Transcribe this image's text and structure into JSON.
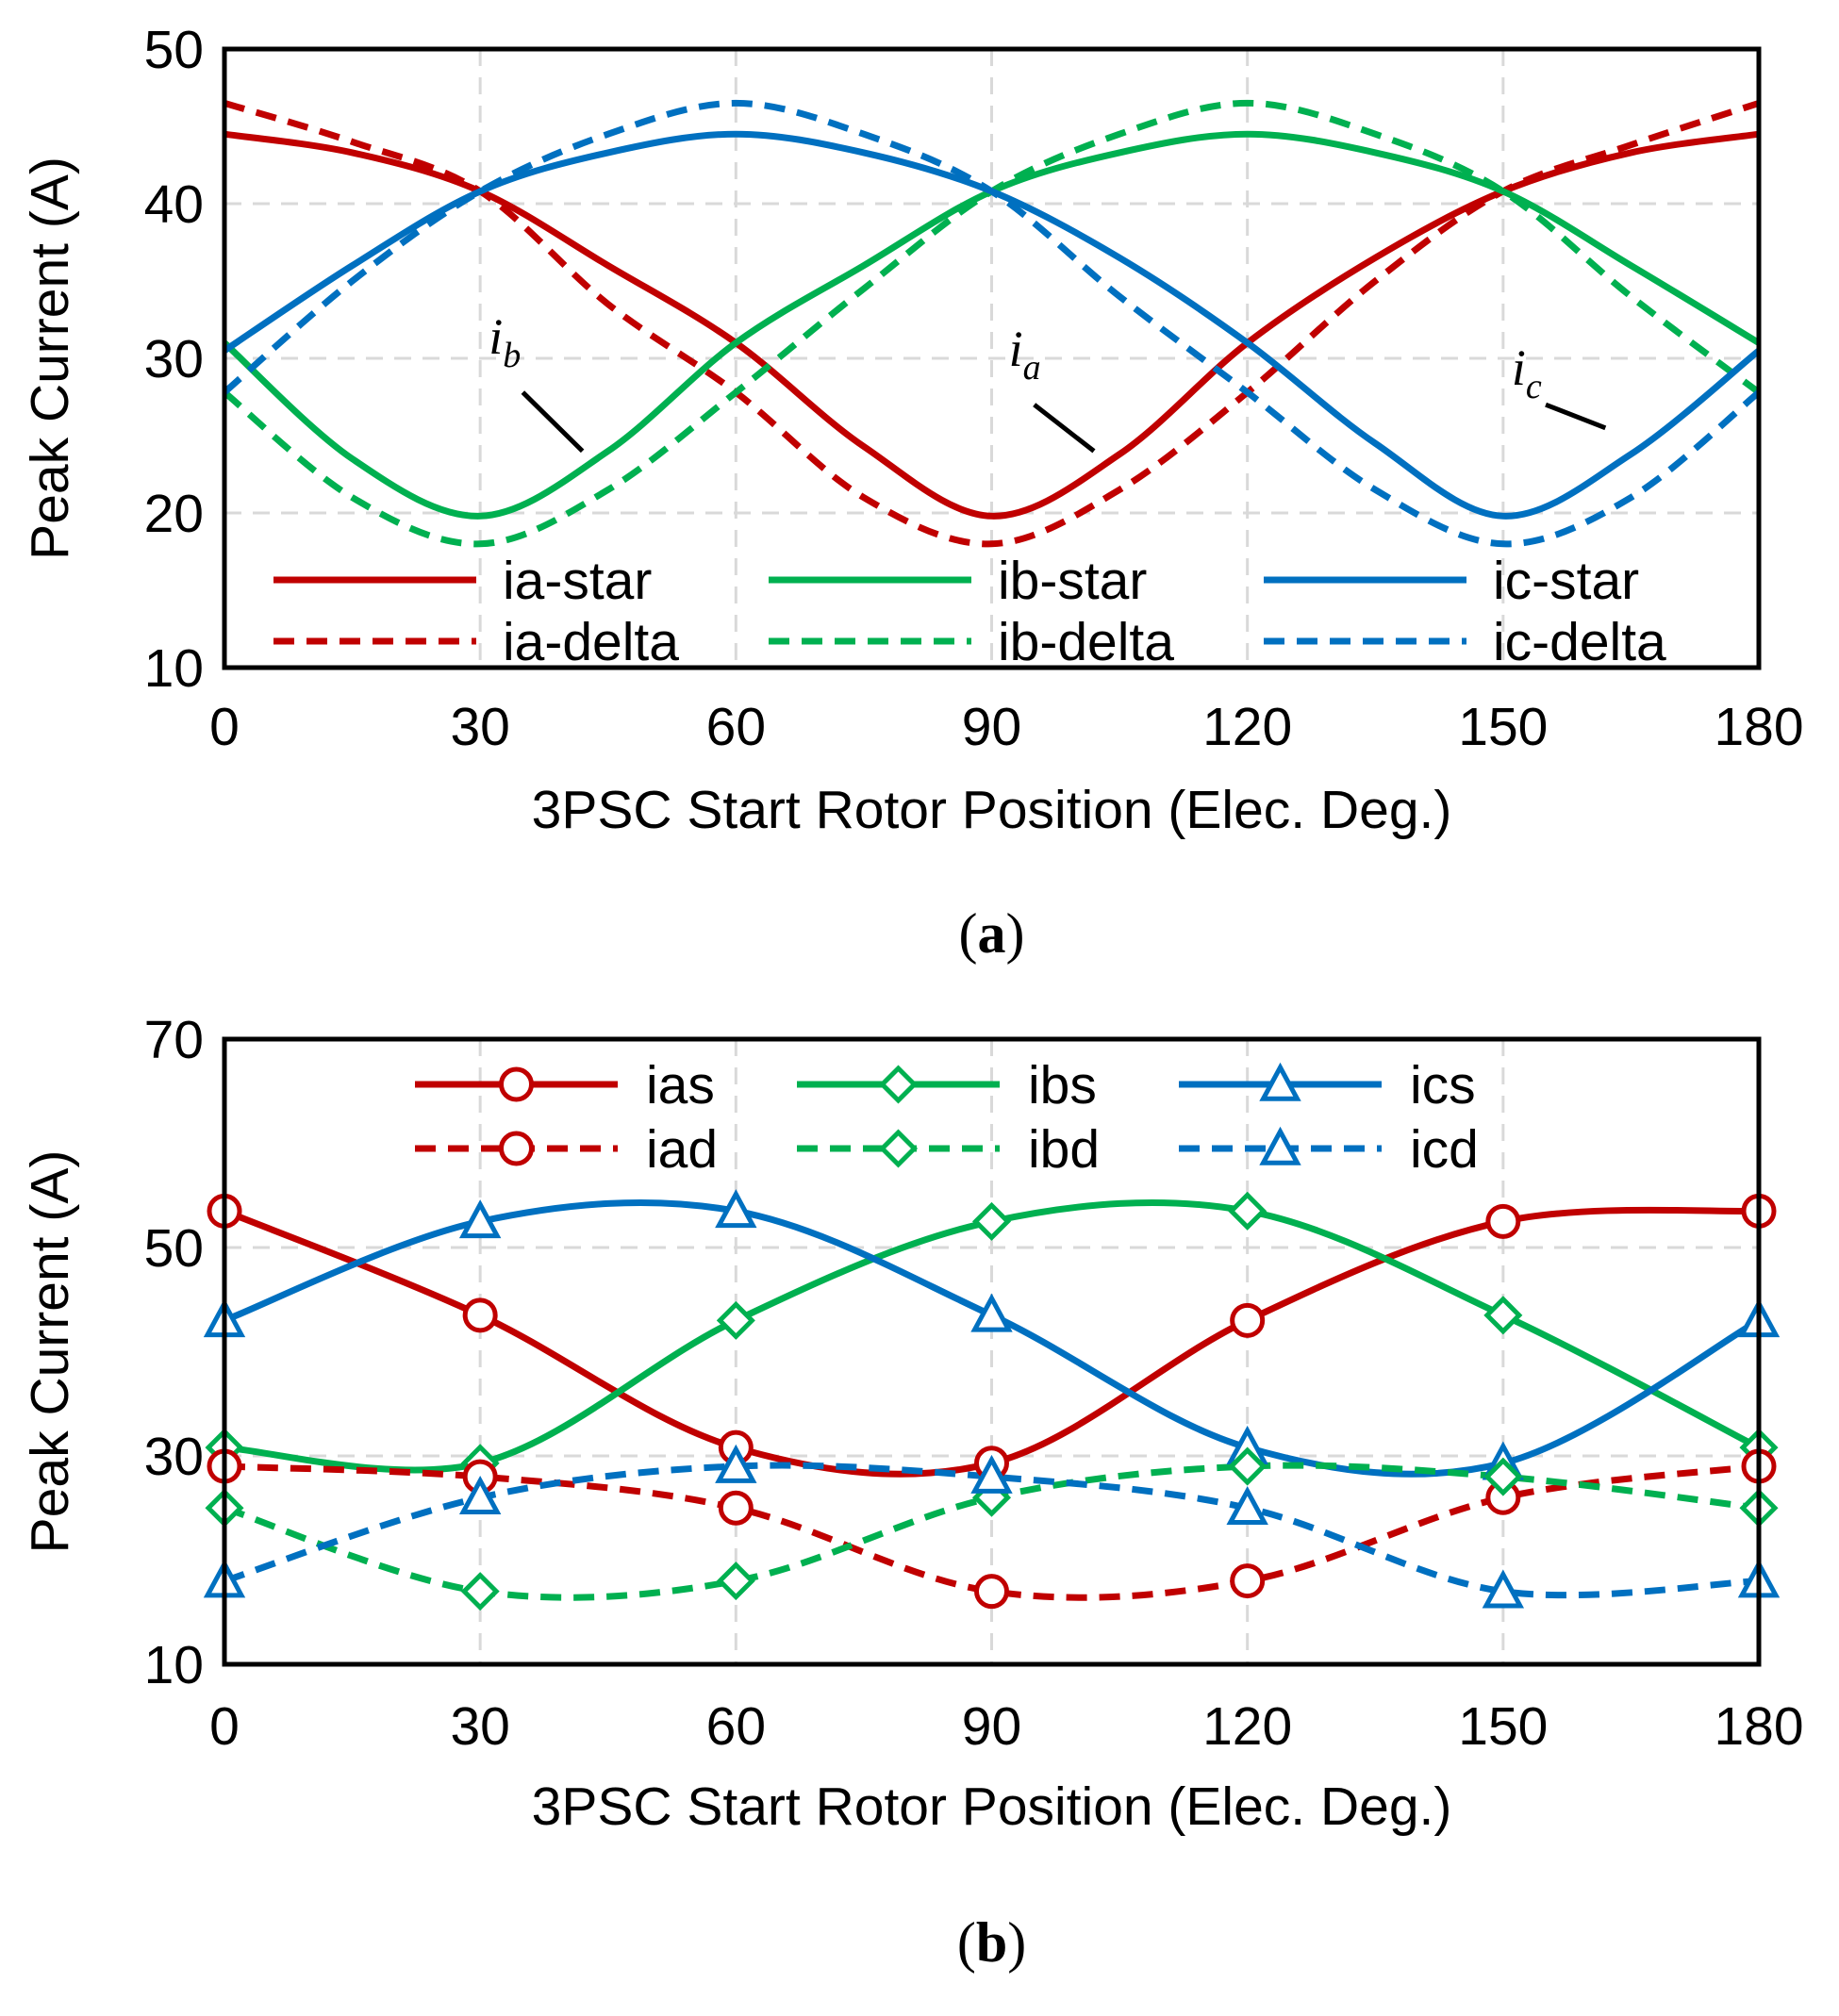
{
  "colors": {
    "a": "#c00000",
    "b": "#00b050",
    "c": "#0070c0",
    "grid": "#d9d9d9",
    "axis": "#000000"
  },
  "chart_data": [
    {
      "type": "line",
      "panel_label_open": "(",
      "panel_label_letter": "a",
      "panel_label_close": ")",
      "xlabel": "3PSC Start Rotor Position (Elec. Deg.)",
      "ylabel": "Peak Current (A)",
      "xlim": [
        0,
        180
      ],
      "ylim": [
        10,
        50
      ],
      "xticks": [
        "0",
        "30",
        "60",
        "90",
        "120",
        "150",
        "180"
      ],
      "yticks": [
        "10",
        "20",
        "30",
        "40",
        "50"
      ],
      "grid": true,
      "legend_position": "bottom, inside plot, 3 columns",
      "series": [
        {
          "name": "ia-star",
          "phase": "a",
          "style": "solid",
          "x": [
            0,
            15,
            30,
            45,
            60,
            75,
            90,
            105,
            120,
            135,
            150,
            165,
            180
          ],
          "y": [
            44.5,
            43.3,
            40.8,
            36.0,
            31.0,
            24.3,
            19.8,
            23.8,
            31.0,
            36.5,
            40.8,
            43.3,
            44.5
          ]
        },
        {
          "name": "ia-delta",
          "phase": "a",
          "style": "dashed",
          "x": [
            0,
            15,
            30,
            45,
            60,
            75,
            90,
            105,
            120,
            135,
            150,
            165,
            180
          ],
          "y": [
            46.5,
            44.0,
            40.8,
            33.5,
            27.8,
            21.0,
            18.0,
            21.5,
            27.8,
            35.0,
            40.8,
            43.8,
            46.5
          ]
        },
        {
          "name": "ib-star",
          "phase": "b",
          "style": "solid",
          "x": [
            0,
            15,
            30,
            45,
            60,
            75,
            90,
            105,
            120,
            135,
            150,
            165,
            180
          ],
          "y": [
            31.0,
            23.5,
            19.8,
            24.0,
            31.0,
            36.0,
            40.8,
            43.3,
            44.5,
            43.3,
            40.8,
            36.0,
            31.0
          ]
        },
        {
          "name": "ib-delta",
          "phase": "b",
          "style": "dashed",
          "x": [
            0,
            15,
            30,
            45,
            60,
            75,
            90,
            105,
            120,
            135,
            150,
            165,
            180
          ],
          "y": [
            27.8,
            21.0,
            18.0,
            21.5,
            27.8,
            34.5,
            40.8,
            44.5,
            46.5,
            44.5,
            40.8,
            34.0,
            27.8
          ]
        },
        {
          "name": "ic-star",
          "phase": "c",
          "style": "solid",
          "x": [
            0,
            15,
            30,
            45,
            60,
            75,
            90,
            105,
            120,
            135,
            150,
            165,
            180
          ],
          "y": [
            30.5,
            36.0,
            40.8,
            43.3,
            44.5,
            43.3,
            40.8,
            36.5,
            31.0,
            24.5,
            19.8,
            23.8,
            30.5
          ]
        },
        {
          "name": "ic-delta",
          "phase": "c",
          "style": "dashed",
          "x": [
            0,
            15,
            30,
            45,
            60,
            75,
            90,
            105,
            120,
            135,
            150,
            165,
            180
          ],
          "y": [
            27.8,
            35.0,
            40.8,
            44.5,
            46.5,
            44.5,
            40.8,
            34.0,
            27.8,
            21.5,
            18.0,
            21.0,
            27.8
          ]
        }
      ],
      "annotations": [
        {
          "label": "i",
          "sub": "b",
          "label_x": 31,
          "label_y": 30.3,
          "line": [
            [
              35,
              27.8
            ],
            [
              42,
              24.0
            ]
          ]
        },
        {
          "label": "i",
          "sub": "a",
          "label_x": 92,
          "label_y": 29.5,
          "line": [
            [
              95,
              27.0
            ],
            [
              102,
              24.0
            ]
          ]
        },
        {
          "label": "i",
          "sub": "c",
          "label_x": 151,
          "label_y": 28.3,
          "line": [
            [
              155,
              27.0
            ],
            [
              162,
              25.5
            ]
          ]
        }
      ]
    },
    {
      "type": "line",
      "panel_label_open": "(",
      "panel_label_letter": "b",
      "panel_label_close": ")",
      "xlabel": "3PSC Start Rotor Position (Elec. Deg.)",
      "ylabel": "Peak Current (A)",
      "xlim": [
        0,
        180
      ],
      "ylim": [
        10,
        70
      ],
      "xticks": [
        "0",
        "30",
        "60",
        "90",
        "120",
        "150",
        "180"
      ],
      "yticks": [
        "10",
        "30",
        "50",
        "70"
      ],
      "grid": true,
      "legend_position": "top, inside plot, 3 columns",
      "series": [
        {
          "name": "ias",
          "phase": "a",
          "style": "solid",
          "marker": "circle",
          "x": [
            0,
            30,
            60,
            90,
            120,
            150,
            180
          ],
          "y": [
            53.5,
            43.5,
            30.8,
            29.3,
            43.0,
            52.5,
            53.5
          ]
        },
        {
          "name": "ibs",
          "phase": "b",
          "style": "solid",
          "marker": "diamond",
          "x": [
            0,
            30,
            60,
            90,
            120,
            150,
            180
          ],
          "y": [
            30.8,
            29.3,
            43.0,
            52.5,
            53.5,
            43.5,
            30.8
          ]
        },
        {
          "name": "ics",
          "phase": "c",
          "style": "solid",
          "marker": "triangle",
          "x": [
            0,
            30,
            60,
            90,
            120,
            150,
            180
          ],
          "y": [
            43.0,
            52.5,
            53.5,
            43.5,
            30.8,
            29.3,
            43.0
          ]
        },
        {
          "name": "iad",
          "phase": "a",
          "style": "dashed",
          "marker": "circle",
          "x": [
            0,
            30,
            60,
            90,
            120,
            150,
            180
          ],
          "y": [
            29.0,
            28.0,
            25.0,
            17.0,
            18.0,
            26.0,
            29.0
          ]
        },
        {
          "name": "ibd",
          "phase": "b",
          "style": "dashed",
          "marker": "diamond",
          "x": [
            0,
            30,
            60,
            90,
            120,
            150,
            180
          ],
          "y": [
            25.0,
            17.0,
            18.0,
            26.0,
            29.0,
            28.0,
            25.0
          ]
        },
        {
          "name": "icd",
          "phase": "c",
          "style": "dashed",
          "marker": "triangle",
          "x": [
            0,
            30,
            60,
            90,
            120,
            150,
            180
          ],
          "y": [
            18.0,
            26.0,
            29.0,
            28.0,
            25.0,
            17.0,
            18.0
          ]
        }
      ]
    }
  ]
}
